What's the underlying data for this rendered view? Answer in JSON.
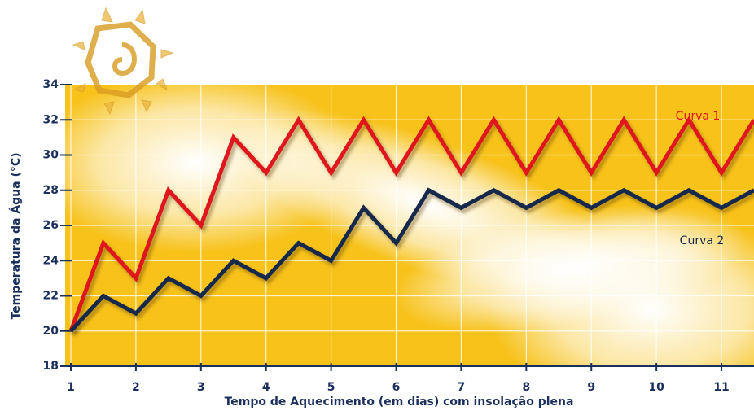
{
  "chart_data": {
    "type": "line",
    "xlabel": "Tempo de Aquecimento (em dias) com insolação plena",
    "ylabel": "Temperatura da Água (°C)",
    "x": [
      1,
      1.5,
      2,
      2.5,
      3,
      3.5,
      4,
      4.5,
      5,
      5.5,
      6,
      6.5,
      7,
      7.5,
      8,
      8.5,
      9,
      9.5,
      10,
      10.5,
      11,
      11.5
    ],
    "series": [
      {
        "name": "Curva 1",
        "color": "#e0161e",
        "values": [
          20,
          25,
          23,
          28,
          26,
          31,
          29,
          32,
          29,
          32,
          29,
          32,
          29,
          32,
          29,
          32,
          29,
          32,
          29,
          32,
          29,
          32
        ]
      },
      {
        "name": "Curva 2",
        "color": "#17294a",
        "values": [
          20,
          22,
          21,
          23,
          22,
          24,
          23,
          25,
          24,
          27,
          25,
          28,
          27,
          28,
          27,
          28,
          27,
          28,
          27,
          28,
          27,
          28
        ]
      }
    ],
    "xlim": [
      1,
      11.5
    ],
    "ylim": [
      18,
      34
    ],
    "xticks": [
      1,
      2,
      3,
      4,
      5,
      6,
      7,
      8,
      9,
      10,
      11
    ],
    "yticks": [
      18,
      20,
      22,
      24,
      26,
      28,
      30,
      32,
      34
    ],
    "grid": true
  }
}
